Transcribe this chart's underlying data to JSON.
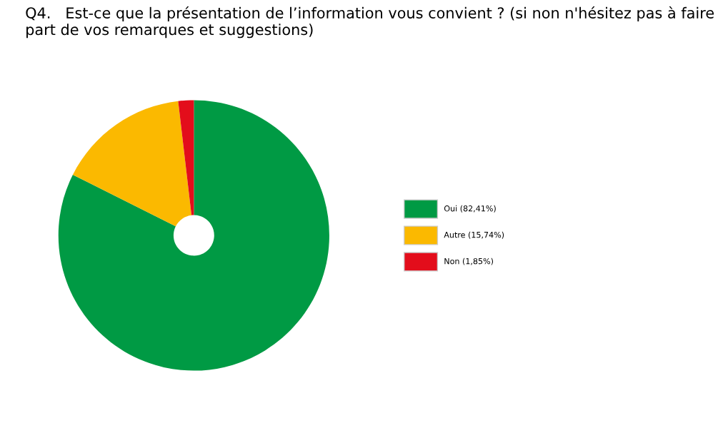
{
  "chart_data": {
    "type": "donut",
    "title": "Q4.   Est-ce que la présentation de l’information vous convient ? (si non n'hésitez pas à faire part de vos remarques et suggestions)",
    "categories": [
      "Oui (82,41%)",
      "Autre (15,74%)",
      "Non (1,85%)"
    ],
    "values": [
      82.41,
      15.74,
      1.85
    ],
    "colors": [
      "#009a44",
      "#fbb900",
      "#e30d1b"
    ],
    "legend": "right"
  }
}
